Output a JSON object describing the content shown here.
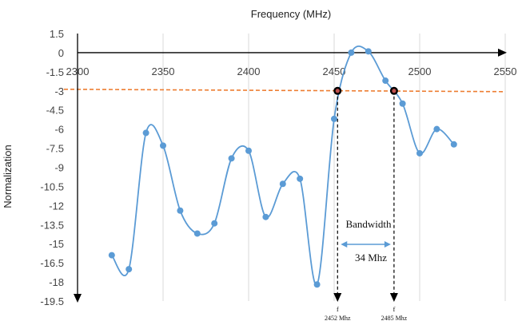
{
  "chart_data": {
    "type": "line",
    "title": "Frequency (MHz)",
    "xlabel": "",
    "ylabel": "Normalization",
    "xlim": [
      2300,
      2550
    ],
    "ylim": [
      -19.5,
      1.5
    ],
    "x_ticks": [
      "2300",
      "2350",
      "2400",
      "2450",
      "2500",
      "2550"
    ],
    "y_ticks": [
      "1.5",
      "0",
      "-1.5",
      "-3",
      "-4.5",
      "-6",
      "-7.5",
      "-9",
      "-10.5",
      "-12",
      "-13.5",
      "-15",
      "-16.5",
      "-18",
      "-19.5"
    ],
    "grid": "vertical",
    "series": [
      {
        "color": "#5b9bd5",
        "x": [
          2320,
          2330,
          2340,
          2350,
          2360,
          2370,
          2380,
          2390,
          2400,
          2410,
          2420,
          2430,
          2440,
          2450,
          2460,
          2470,
          2480,
          2490,
          2500,
          2510,
          2520
        ],
        "y": [
          -15.9,
          -17.0,
          -6.3,
          -7.3,
          -12.4,
          -14.2,
          -13.4,
          -8.3,
          -7.7,
          -12.9,
          -10.3,
          -9.9,
          -18.2,
          -5.2,
          0.0,
          0.1,
          -2.2,
          -4.0,
          -7.9,
          -6.0,
          -7.2
        ]
      }
    ],
    "reference_line": {
      "y": -3,
      "color": "#ed7d31"
    },
    "markers": [
      {
        "x": 2452,
        "y": -3,
        "label_top": "f",
        "label_bottom": "2452 Mhz"
      },
      {
        "x": 2485,
        "y": -3,
        "label_top": "f",
        "label_bottom": "2485 Mhz"
      }
    ],
    "annotations": {
      "bandwidth_label": "Bandwidth",
      "bandwidth_value": "34 Mhz"
    }
  }
}
